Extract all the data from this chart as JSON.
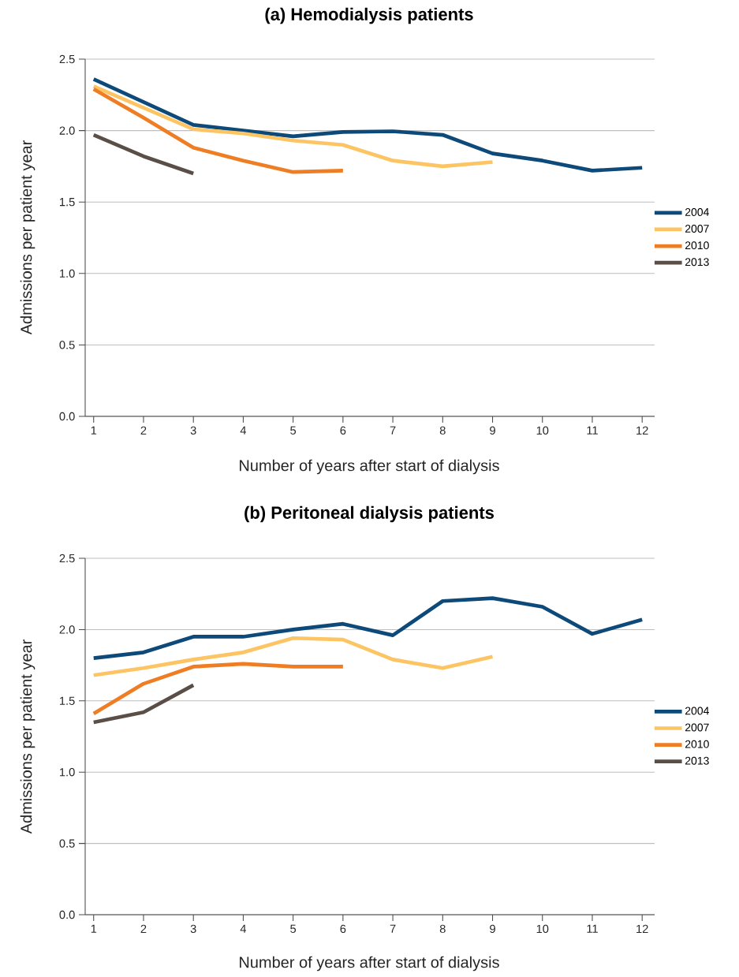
{
  "chart_data": [
    {
      "type": "line",
      "title": "(a)    Hemodialysis patients",
      "xlabel": "Number of years after start of dialysis",
      "ylabel": "Admissions per patient year",
      "xlim": [
        0.83,
        12.25
      ],
      "xticks": [
        1,
        2,
        3,
        4,
        5,
        6,
        7,
        8,
        9,
        10,
        11,
        12
      ],
      "ylim": [
        0,
        2.5
      ],
      "yticks": [
        {
          "value": 0,
          "label": "0.0"
        },
        0.5,
        {
          "value": 1,
          "label": "1.0"
        },
        1.5,
        {
          "value": 2,
          "label": "2.0"
        },
        2.5
      ],
      "grid": "y",
      "legend": "right",
      "line_style": "solid",
      "marker": "none",
      "series": [
        {
          "name": "2004",
          "color": "#0d4a7a",
          "x": [
            1,
            2,
            3,
            4,
            5,
            6,
            7,
            8,
            9,
            10,
            11,
            12
          ],
          "values": [
            2.36,
            2.2,
            2.04,
            2.0,
            1.96,
            1.99,
            1.995,
            1.97,
            1.84,
            1.79,
            1.72,
            1.74
          ]
        },
        {
          "name": "2007",
          "color": "#fdc463",
          "x": [
            1,
            2,
            3,
            4,
            5,
            6,
            7,
            8,
            9
          ],
          "values": [
            2.31,
            2.16,
            2.01,
            1.98,
            1.93,
            1.9,
            1.79,
            1.75,
            1.78
          ]
        },
        {
          "name": "2010",
          "color": "#ee7d24",
          "x": [
            1,
            2,
            3,
            4,
            5,
            6
          ],
          "values": [
            2.29,
            2.09,
            1.88,
            1.79,
            1.71,
            1.72
          ]
        },
        {
          "name": "2013",
          "color": "#5a4e47",
          "x": [
            1,
            2,
            3
          ],
          "values": [
            1.97,
            1.82,
            1.7
          ]
        }
      ]
    },
    {
      "type": "line",
      "title": "(b)    Peritoneal dialysis patients",
      "xlabel": "Number of years after start of dialysis",
      "ylabel": "Admissions per patient year",
      "xlim": [
        0.83,
        12.25
      ],
      "xticks": [
        1,
        2,
        3,
        4,
        5,
        6,
        7,
        8,
        9,
        10,
        11,
        12
      ],
      "ylim": [
        0,
        2.5
      ],
      "yticks": [
        {
          "value": 0,
          "label": "0.0"
        },
        0.5,
        {
          "value": 1,
          "label": "1.0"
        },
        1.5,
        {
          "value": 2,
          "label": "2.0"
        },
        2.5
      ],
      "grid": "y",
      "legend": "right",
      "line_style": "solid",
      "marker": "none",
      "series": [
        {
          "name": "2004",
          "color": "#0d4a7a",
          "x": [
            1,
            2,
            3,
            4,
            5,
            6,
            7,
            8,
            9,
            10,
            11,
            12
          ],
          "values": [
            1.8,
            1.84,
            1.95,
            1.95,
            2.0,
            2.04,
            1.96,
            2.2,
            2.22,
            2.16,
            1.97,
            2.07
          ]
        },
        {
          "name": "2007",
          "color": "#fdc463",
          "x": [
            1,
            2,
            3,
            4,
            5,
            6,
            7,
            8,
            9
          ],
          "values": [
            1.68,
            1.73,
            1.79,
            1.84,
            1.94,
            1.93,
            1.79,
            1.73,
            1.81
          ]
        },
        {
          "name": "2010",
          "color": "#ee7d24",
          "x": [
            1,
            2,
            3,
            4,
            5,
            6
          ],
          "values": [
            1.41,
            1.62,
            1.74,
            1.76,
            1.74,
            1.74
          ]
        },
        {
          "name": "2013",
          "color": "#5a4e47",
          "x": [
            1,
            2,
            3
          ],
          "values": [
            1.35,
            1.42,
            1.61
          ]
        }
      ]
    }
  ]
}
